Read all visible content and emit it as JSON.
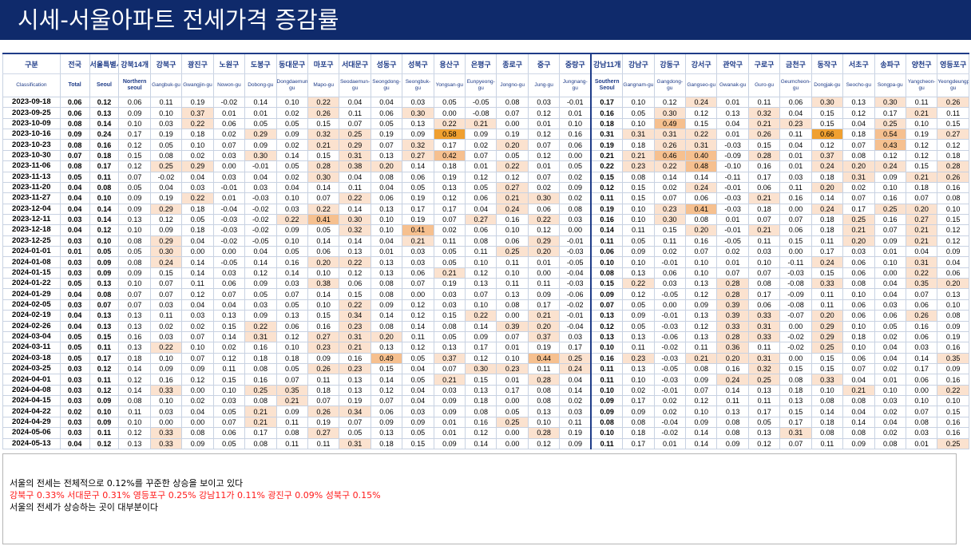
{
  "title": "시세-서울아파트 전세가격 증감률",
  "colors": {
    "title_bg": "#0f2a6b",
    "highlight_low": "#fbe2cf",
    "highlight_mid": "#f6c08f",
    "highlight_high": "#f0a030",
    "header_text": "#1f3c88",
    "comment_red": "#ff1a1a"
  },
  "columns": [
    {
      "kr": "구분",
      "en": "Classification"
    },
    {
      "kr": "전국",
      "en": "Total",
      "bold": true
    },
    {
      "kr": "서울특별시",
      "en": "Seoul",
      "bold": true
    },
    {
      "kr": "강북14개",
      "en": "Northern seoul",
      "bold": true
    },
    {
      "kr": "강북구",
      "en": "Gangbuk-gu"
    },
    {
      "kr": "광진구",
      "en": "Gwangjin-gu"
    },
    {
      "kr": "노원구",
      "en": "Nowon-gu"
    },
    {
      "kr": "도봉구",
      "en": "Dobong-gu"
    },
    {
      "kr": "동대문구",
      "en": "Dongdaemun-gu"
    },
    {
      "kr": "마포구",
      "en": "Mapo-gu"
    },
    {
      "kr": "서대문구",
      "en": "Seodaemun-gu"
    },
    {
      "kr": "성동구",
      "en": "Seongdong-gu"
    },
    {
      "kr": "성북구",
      "en": "Seongbuk-gu"
    },
    {
      "kr": "용산구",
      "en": "Yongsan-gu"
    },
    {
      "kr": "은평구",
      "en": "Eunpyeong-gu"
    },
    {
      "kr": "종로구",
      "en": "Jongno-gu"
    },
    {
      "kr": "중구",
      "en": "Jung-gu"
    },
    {
      "kr": "중랑구",
      "en": "Jungnang-gu"
    },
    {
      "kr": "강남11개",
      "en": "Southern Seoul",
      "bold": true
    },
    {
      "kr": "강남구",
      "en": "Gangnam-gu"
    },
    {
      "kr": "강동구",
      "en": "Gangdong-gu"
    },
    {
      "kr": "강서구",
      "en": "Gangseo-gu"
    },
    {
      "kr": "관악구",
      "en": "Gwanak-gu"
    },
    {
      "kr": "구로구",
      "en": "Guro-gu"
    },
    {
      "kr": "금천구",
      "en": "Geumcheon-gu"
    },
    {
      "kr": "동작구",
      "en": "Dongjak-gu"
    },
    {
      "kr": "서초구",
      "en": "Seocho-gu"
    },
    {
      "kr": "송파구",
      "en": "Songpa-gu"
    },
    {
      "kr": "양천구",
      "en": "Yangcheon-gu"
    },
    {
      "kr": "영등포구",
      "en": "Yeongdeungpo-gu"
    }
  ],
  "rows": [
    {
      "date": "2023-09-18",
      "v": [
        "0.06",
        "0.12",
        "0.06",
        "0.11",
        "0.19",
        "-0.02",
        "0.14",
        "0.10",
        "0.22",
        "0.04",
        "0.04",
        "0.03",
        "0.05",
        "-0.05",
        "0.08",
        "0.03",
        "-0.01",
        "0.17",
        "0.10",
        "0.12",
        "0.24",
        "0.01",
        "0.11",
        "0.06",
        "0.30",
        "0.13",
        "0.30",
        "0.11",
        "0.26"
      ]
    },
    {
      "date": "2023-09-25",
      "v": [
        "0.06",
        "0.13",
        "0.09",
        "0.10",
        "0.37",
        "0.01",
        "0.01",
        "0.02",
        "0.26",
        "0.11",
        "0.06",
        "0.30",
        "0.00",
        "-0.08",
        "0.07",
        "0.12",
        "0.01",
        "0.16",
        "0.05",
        "0.30",
        "0.12",
        "0.13",
        "0.32",
        "0.04",
        "0.15",
        "0.12",
        "0.17",
        "0.21",
        "0.11"
      ]
    },
    {
      "date": "2023-10-09",
      "v": [
        "0.08",
        "0.14",
        "0.10",
        "0.03",
        "0.22",
        "0.06",
        "0.05",
        "0.05",
        "0.15",
        "0.07",
        "0.05",
        "0.13",
        "0.22",
        "0.21",
        "0.00",
        "0.01",
        "0.10",
        "0.18",
        "0.10",
        "0.49",
        "0.15",
        "0.04",
        "0.21",
        "0.23",
        "0.15",
        "0.04",
        "0.25",
        "0.10",
        "0.15"
      ]
    },
    {
      "date": "2023-10-16",
      "v": [
        "0.09",
        "0.24",
        "0.17",
        "0.19",
        "0.18",
        "0.02",
        "0.29",
        "0.09",
        "0.32",
        "0.25",
        "0.19",
        "0.09",
        "0.58",
        "0.09",
        "0.19",
        "0.12",
        "0.16",
        "0.31",
        "0.31",
        "0.31",
        "0.22",
        "0.01",
        "0.26",
        "0.11",
        "0.66",
        "0.18",
        "0.54",
        "0.19",
        "0.27"
      ]
    },
    {
      "date": "2023-10-23",
      "v": [
        "0.08",
        "0.16",
        "0.12",
        "0.05",
        "0.10",
        "0.07",
        "0.09",
        "0.02",
        "0.21",
        "0.29",
        "0.07",
        "0.32",
        "0.17",
        "0.02",
        "0.20",
        "0.07",
        "0.06",
        "0.19",
        "0.18",
        "0.26",
        "0.31",
        "-0.03",
        "0.15",
        "0.04",
        "0.12",
        "0.07",
        "0.43",
        "0.12",
        "0.12"
      ]
    },
    {
      "date": "2023-10-30",
      "v": [
        "0.07",
        "0.18",
        "0.15",
        "0.08",
        "0.02",
        "0.03",
        "0.30",
        "0.14",
        "0.15",
        "0.31",
        "0.13",
        "0.27",
        "0.42",
        "0.07",
        "0.05",
        "0.12",
        "0.00",
        "0.21",
        "0.21",
        "0.46",
        "0.40",
        "-0.09",
        "0.28",
        "0.01",
        "0.37",
        "0.08",
        "0.12",
        "0.12",
        "0.18"
      ]
    },
    {
      "date": "2023-11-06",
      "v": [
        "0.08",
        "0.17",
        "0.12",
        "0.25",
        "0.29",
        "0.00",
        "-0.01",
        "0.05",
        "0.28",
        "0.38",
        "0.20",
        "0.14",
        "0.18",
        "0.01",
        "0.22",
        "0.01",
        "0.05",
        "0.22",
        "0.23",
        "0.22",
        "0.48",
        "-0.10",
        "0.16",
        "0.01",
        "0.24",
        "0.20",
        "0.24",
        "0.15",
        "0.28"
      ]
    },
    {
      "date": "2023-11-13",
      "v": [
        "0.05",
        "0.11",
        "0.07",
        "-0.02",
        "0.04",
        "0.03",
        "0.04",
        "0.02",
        "0.30",
        "0.04",
        "0.08",
        "0.06",
        "0.19",
        "0.12",
        "0.12",
        "0.07",
        "0.02",
        "0.15",
        "0.08",
        "0.14",
        "0.14",
        "-0.11",
        "0.17",
        "0.03",
        "0.18",
        "0.31",
        "0.09",
        "0.21",
        "0.26"
      ]
    },
    {
      "date": "2023-11-20",
      "v": [
        "0.04",
        "0.08",
        "0.05",
        "0.04",
        "0.03",
        "-0.01",
        "0.03",
        "0.04",
        "0.14",
        "0.11",
        "0.04",
        "0.05",
        "0.13",
        "0.05",
        "0.27",
        "0.02",
        "0.09",
        "0.12",
        "0.15",
        "0.02",
        "0.24",
        "-0.01",
        "0.06",
        "0.11",
        "0.20",
        "0.02",
        "0.10",
        "0.18",
        "0.16"
      ]
    },
    {
      "date": "2023-11-27",
      "v": [
        "0.04",
        "0.10",
        "0.09",
        "0.19",
        "0.22",
        "0.01",
        "-0.03",
        "0.10",
        "0.07",
        "0.22",
        "0.06",
        "0.19",
        "0.12",
        "0.06",
        "0.21",
        "0.30",
        "0.02",
        "0.11",
        "0.15",
        "0.07",
        "0.06",
        "-0.03",
        "0.21",
        "0.16",
        "0.14",
        "0.07",
        "0.16",
        "0.07",
        "0.08"
      ]
    },
    {
      "date": "2023-12-04",
      "v": [
        "0.04",
        "0.14",
        "0.09",
        "0.29",
        "0.18",
        "-0.04",
        "-0.02",
        "0.03",
        "0.22",
        "0.14",
        "0.13",
        "0.17",
        "0.17",
        "0.04",
        "0.24",
        "0.06",
        "0.08",
        "0.19",
        "0.10",
        "0.23",
        "0.41",
        "-0.03",
        "0.18",
        "0.00",
        "0.24",
        "0.17",
        "0.25",
        "0.20",
        "0.10"
      ]
    },
    {
      "date": "2023-12-11",
      "v": [
        "0.03",
        "0.14",
        "0.13",
        "0.12",
        "0.05",
        "-0.03",
        "-0.02",
        "0.22",
        "0.41",
        "0.30",
        "0.10",
        "0.19",
        "0.07",
        "0.27",
        "0.16",
        "0.22",
        "0.03",
        "0.16",
        "0.10",
        "0.30",
        "0.08",
        "0.01",
        "0.07",
        "0.07",
        "0.18",
        "0.25",
        "0.16",
        "0.27",
        "0.15"
      ]
    },
    {
      "date": "2023-12-18",
      "v": [
        "0.04",
        "0.12",
        "0.10",
        "0.09",
        "0.18",
        "-0.03",
        "-0.02",
        "0.09",
        "0.05",
        "0.32",
        "0.10",
        "0.41",
        "0.02",
        "0.06",
        "0.10",
        "0.12",
        "0.00",
        "0.14",
        "0.11",
        "0.15",
        "0.20",
        "-0.01",
        "0.21",
        "0.06",
        "0.18",
        "0.21",
        "0.07",
        "0.21",
        "0.12"
      ]
    },
    {
      "date": "2023-12-25",
      "v": [
        "0.03",
        "0.10",
        "0.08",
        "0.29",
        "0.04",
        "-0.02",
        "-0.05",
        "0.10",
        "0.14",
        "0.14",
        "0.04",
        "0.21",
        "0.11",
        "0.08",
        "0.06",
        "0.29",
        "-0.01",
        "0.11",
        "0.05",
        "0.11",
        "0.16",
        "-0.05",
        "0.11",
        "0.15",
        "0.11",
        "0.20",
        "0.09",
        "0.21",
        "0.12"
      ]
    },
    {
      "date": "2024-01-01",
      "v": [
        "0.01",
        "0.05",
        "0.05",
        "0.30",
        "0.00",
        "0.00",
        "0.04",
        "0.05",
        "0.06",
        "0.13",
        "0.01",
        "0.03",
        "0.05",
        "0.11",
        "0.25",
        "0.20",
        "-0.03",
        "0.06",
        "0.09",
        "0.02",
        "0.07",
        "0.02",
        "0.03",
        "0.00",
        "0.17",
        "0.03",
        "0.01",
        "0.04",
        "0.09"
      ]
    },
    {
      "date": "2024-01-08",
      "v": [
        "0.03",
        "0.09",
        "0.08",
        "0.24",
        "0.14",
        "-0.05",
        "0.14",
        "0.16",
        "0.20",
        "0.22",
        "0.13",
        "0.03",
        "0.05",
        "0.10",
        "0.11",
        "0.01",
        "-0.05",
        "0.10",
        "0.10",
        "-0.01",
        "0.10",
        "0.01",
        "0.10",
        "-0.11",
        "0.24",
        "0.06",
        "0.10",
        "0.31",
        "0.04"
      ]
    },
    {
      "date": "2024-01-15",
      "v": [
        "0.03",
        "0.09",
        "0.09",
        "0.15",
        "0.14",
        "0.03",
        "0.12",
        "0.14",
        "0.10",
        "0.12",
        "0.13",
        "0.06",
        "0.21",
        "0.12",
        "0.10",
        "0.00",
        "-0.04",
        "0.08",
        "0.13",
        "0.06",
        "0.10",
        "0.07",
        "0.07",
        "-0.03",
        "0.15",
        "0.06",
        "0.00",
        "0.22",
        "0.06"
      ]
    },
    {
      "date": "2024-01-22",
      "v": [
        "0.05",
        "0.13",
        "0.10",
        "0.07",
        "0.11",
        "0.06",
        "0.09",
        "0.03",
        "0.38",
        "0.06",
        "0.08",
        "0.07",
        "0.19",
        "0.13",
        "0.11",
        "0.11",
        "-0.03",
        "0.15",
        "0.22",
        "0.03",
        "0.13",
        "0.28",
        "0.08",
        "-0.08",
        "0.33",
        "0.08",
        "0.04",
        "0.35",
        "0.20"
      ]
    },
    {
      "date": "2024-01-29",
      "v": [
        "0.04",
        "0.08",
        "0.07",
        "0.07",
        "0.12",
        "0.07",
        "0.05",
        "0.07",
        "0.14",
        "0.15",
        "0.08",
        "0.00",
        "0.03",
        "0.07",
        "0.13",
        "0.09",
        "-0.06",
        "0.09",
        "0.12",
        "-0.05",
        "0.12",
        "0.28",
        "0.17",
        "-0.09",
        "0.11",
        "0.10",
        "0.04",
        "0.07",
        "0.13"
      ]
    },
    {
      "date": "2024-02-05",
      "v": [
        "0.03",
        "0.07",
        "0.07",
        "0.03",
        "0.04",
        "0.04",
        "0.03",
        "0.05",
        "0.10",
        "0.22",
        "0.09",
        "0.12",
        "0.03",
        "0.10",
        "0.08",
        "0.17",
        "-0.02",
        "0.07",
        "0.05",
        "0.00",
        "0.09",
        "0.39",
        "0.06",
        "-0.08",
        "0.11",
        "0.06",
        "0.03",
        "0.06",
        "0.10"
      ]
    },
    {
      "date": "2024-02-19",
      "v": [
        "0.04",
        "0.13",
        "0.13",
        "0.11",
        "0.03",
        "0.13",
        "0.09",
        "0.13",
        "0.15",
        "0.34",
        "0.14",
        "0.12",
        "0.15",
        "0.22",
        "0.00",
        "0.21",
        "-0.01",
        "0.13",
        "0.09",
        "-0.01",
        "0.13",
        "0.39",
        "0.33",
        "-0.07",
        "0.20",
        "0.06",
        "0.06",
        "0.26",
        "0.08"
      ]
    },
    {
      "date": "2024-02-26",
      "v": [
        "0.04",
        "0.13",
        "0.13",
        "0.02",
        "0.02",
        "0.15",
        "0.22",
        "0.06",
        "0.16",
        "0.23",
        "0.08",
        "0.14",
        "0.08",
        "0.14",
        "0.39",
        "0.20",
        "-0.04",
        "0.12",
        "0.05",
        "-0.03",
        "0.12",
        "0.33",
        "0.31",
        "0.00",
        "0.29",
        "0.10",
        "0.05",
        "0.16",
        "0.09"
      ]
    },
    {
      "date": "2024-03-04",
      "v": [
        "0.05",
        "0.15",
        "0.16",
        "0.03",
        "0.07",
        "0.14",
        "0.31",
        "0.12",
        "0.27",
        "0.31",
        "0.20",
        "0.11",
        "0.05",
        "0.09",
        "0.07",
        "0.37",
        "0.03",
        "0.13",
        "0.13",
        "-0.06",
        "0.13",
        "0.28",
        "0.33",
        "-0.02",
        "0.29",
        "0.18",
        "0.02",
        "0.06",
        "0.19"
      ]
    },
    {
      "date": "2024-03-11",
      "v": [
        "0.05",
        "0.11",
        "0.13",
        "0.22",
        "0.10",
        "0.02",
        "0.16",
        "0.10",
        "0.23",
        "0.21",
        "0.13",
        "0.12",
        "0.13",
        "0.17",
        "0.01",
        "0.19",
        "0.17",
        "0.10",
        "0.11",
        "-0.02",
        "0.11",
        "0.36",
        "0.11",
        "-0.02",
        "0.25",
        "0.10",
        "0.04",
        "0.03",
        "0.16"
      ]
    },
    {
      "date": "2024-03-18",
      "v": [
        "0.05",
        "0.17",
        "0.18",
        "0.10",
        "0.07",
        "0.12",
        "0.18",
        "0.18",
        "0.09",
        "0.16",
        "0.49",
        "0.05",
        "0.37",
        "0.12",
        "0.10",
        "0.44",
        "0.25",
        "0.16",
        "0.23",
        "-0.03",
        "0.21",
        "0.20",
        "0.31",
        "0.00",
        "0.15",
        "0.06",
        "0.04",
        "0.14",
        "0.35"
      ]
    },
    {
      "date": "2024-03-25",
      "v": [
        "0.03",
        "0.12",
        "0.14",
        "0.09",
        "0.09",
        "0.11",
        "0.08",
        "0.05",
        "0.26",
        "0.23",
        "0.15",
        "0.04",
        "0.07",
        "0.30",
        "0.23",
        "0.11",
        "0.24",
        "0.11",
        "0.13",
        "-0.05",
        "0.08",
        "0.16",
        "0.32",
        "0.15",
        "0.15",
        "0.07",
        "0.02",
        "0.17",
        "0.09"
      ]
    },
    {
      "date": "2024-04-01",
      "v": [
        "0.03",
        "0.11",
        "0.12",
        "0.16",
        "0.12",
        "0.15",
        "0.16",
        "0.07",
        "0.11",
        "0.13",
        "0.14",
        "0.05",
        "0.21",
        "0.15",
        "0.01",
        "0.28",
        "0.04",
        "0.11",
        "0.10",
        "-0.03",
        "0.09",
        "0.24",
        "0.25",
        "0.08",
        "0.33",
        "0.04",
        "0.01",
        "0.06",
        "0.16"
      ]
    },
    {
      "date": "2024-04-08",
      "v": [
        "0.03",
        "0.12",
        "0.14",
        "0.33",
        "0.00",
        "0.10",
        "0.25",
        "0.35",
        "0.18",
        "0.13",
        "0.12",
        "0.04",
        "0.03",
        "0.13",
        "0.17",
        "0.08",
        "0.14",
        "0.10",
        "0.02",
        "-0.01",
        "0.07",
        "0.14",
        "0.13",
        "0.18",
        "0.10",
        "0.21",
        "0.10",
        "0.00",
        "0.22"
      ]
    },
    {
      "date": "2024-04-15",
      "v": [
        "0.03",
        "0.09",
        "0.08",
        "0.10",
        "0.02",
        "0.03",
        "0.08",
        "0.21",
        "0.07",
        "0.19",
        "0.07",
        "0.04",
        "0.09",
        "0.18",
        "0.00",
        "0.08",
        "0.02",
        "0.09",
        "0.17",
        "0.02",
        "0.12",
        "0.11",
        "0.11",
        "0.13",
        "0.08",
        "0.08",
        "0.03",
        "0.10",
        "0.10"
      ]
    },
    {
      "date": "2024-04-22",
      "v": [
        "0.02",
        "0.10",
        "0.11",
        "0.03",
        "0.04",
        "0.05",
        "0.21",
        "0.09",
        "0.26",
        "0.34",
        "0.06",
        "0.03",
        "0.09",
        "0.08",
        "0.05",
        "0.13",
        "0.03",
        "0.09",
        "0.09",
        "0.02",
        "0.10",
        "0.13",
        "0.17",
        "0.15",
        "0.14",
        "0.04",
        "0.02",
        "0.07",
        "0.15"
      ]
    },
    {
      "date": "2024-04-29",
      "v": [
        "0.03",
        "0.09",
        "0.10",
        "0.00",
        "0.00",
        "0.07",
        "0.21",
        "0.11",
        "0.19",
        "0.07",
        "0.09",
        "0.09",
        "0.01",
        "0.16",
        "0.25",
        "0.10",
        "0.11",
        "0.08",
        "0.08",
        "-0.04",
        "0.09",
        "0.08",
        "0.05",
        "0.17",
        "0.18",
        "0.14",
        "0.04",
        "0.08",
        "0.16"
      ]
    },
    {
      "date": "2024-05-06",
      "v": [
        "0.03",
        "0.11",
        "0.12",
        "0.33",
        "0.08",
        "0.06",
        "0.17",
        "0.08",
        "0.27",
        "0.05",
        "0.13",
        "0.05",
        "0.01",
        "0.12",
        "0.00",
        "0.28",
        "0.19",
        "0.10",
        "0.18",
        "-0.02",
        "0.14",
        "0.08",
        "0.13",
        "0.31",
        "0.08",
        "0.08",
        "0.02",
        "0.03",
        "0.16"
      ]
    },
    {
      "date": "2024-05-13",
      "v": [
        "0.04",
        "0.12",
        "0.13",
        "0.33",
        "0.09",
        "0.05",
        "0.08",
        "0.11",
        "0.11",
        "0.31",
        "0.18",
        "0.15",
        "0.09",
        "0.14",
        "0.00",
        "0.12",
        "0.09",
        "0.11",
        "0.17",
        "0.01",
        "0.14",
        "0.09",
        "0.12",
        "0.07",
        "0.11",
        "0.09",
        "0.08",
        "0.01",
        "0.25"
      ]
    }
  ],
  "comments": {
    "line1": "서울의 전세는 전체적으로 0.12%를 꾸준한 상승을 보이고 있다",
    "line2": "강북구 0.33% 서대문구 0.31% 영등포구 0.25%  강남11가 0.11% 광진구 0.09% 성북구 0.15%",
    "line3": "서울의 전세가 상승하는 곳이 대부분이다"
  }
}
